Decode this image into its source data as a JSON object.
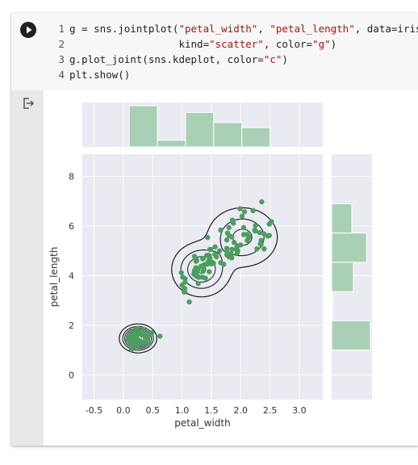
{
  "code_lines": [
    {
      "num": "1",
      "parts": [
        {
          "t": "g = sns.jointplot("
        },
        {
          "t": "\"petal_width\"",
          "s": 1
        },
        {
          "t": ", "
        },
        {
          "t": "\"petal_length\"",
          "s": 1
        },
        {
          "t": ", data=iris,"
        }
      ]
    },
    {
      "num": "2",
      "parts": [
        {
          "t": "                  kind="
        },
        {
          "t": "\"scatter\"",
          "s": 1
        },
        {
          "t": ", color="
        },
        {
          "t": "\"g\"",
          "s": 1
        },
        {
          "t": ")"
        }
      ]
    },
    {
      "num": "3",
      "parts": [
        {
          "t": "g.plot_joint(sns.kdeplot, color="
        },
        {
          "t": "\"c\"",
          "s": 1
        },
        {
          "t": ")"
        }
      ]
    },
    {
      "num": "4",
      "parts": [
        {
          "t": "plt.show()"
        }
      ]
    }
  ],
  "colors": {
    "plot_bg": "#eaeaf2",
    "scatter": "#4c9e5f",
    "hist": "#a9d0b4",
    "kde_dark": "#1a1a1a",
    "kde_light": "#6fa3b3"
  },
  "chart_data": {
    "type": "scatter",
    "xlabel": "petal_width",
    "ylabel": "petal_length",
    "xlim": [
      -0.7,
      3.4
    ],
    "ylim": [
      -1.0,
      8.9
    ],
    "xticks": [
      -0.5,
      0.0,
      0.5,
      1.0,
      1.5,
      2.0,
      2.5,
      3.0
    ],
    "xtick_labels": [
      "-0.5",
      "0.0",
      "0.5",
      "1.0",
      "1.5",
      "2.0",
      "2.5",
      "3.0"
    ],
    "yticks": [
      0,
      2,
      4,
      6,
      8
    ],
    "ytick_labels": [
      "0",
      "2",
      "4",
      "6",
      "8"
    ],
    "grid": true,
    "points": {
      "x": [
        0.2,
        0.2,
        0.2,
        0.2,
        0.2,
        0.4,
        0.3,
        0.2,
        0.2,
        0.1,
        0.2,
        0.2,
        0.1,
        0.1,
        0.2,
        0.4,
        0.4,
        0.3,
        0.3,
        0.3,
        0.2,
        0.4,
        0.2,
        0.5,
        0.2,
        0.2,
        0.4,
        0.2,
        0.2,
        0.2,
        0.2,
        0.4,
        0.1,
        0.2,
        0.2,
        0.2,
        0.2,
        0.1,
        0.2,
        0.2,
        0.3,
        0.3,
        0.2,
        0.6,
        0.4,
        0.3,
        0.2,
        0.2,
        0.2,
        0.2,
        1.4,
        1.5,
        1.5,
        1.3,
        1.5,
        1.3,
        1.6,
        1.0,
        1.3,
        1.4,
        1.0,
        1.5,
        1.0,
        1.4,
        1.3,
        1.4,
        1.5,
        1.0,
        1.5,
        1.1,
        1.8,
        1.3,
        1.5,
        1.2,
        1.3,
        1.4,
        1.4,
        1.7,
        1.5,
        1.0,
        1.1,
        1.0,
        1.2,
        1.6,
        1.5,
        1.6,
        1.5,
        1.3,
        1.3,
        1.3,
        1.2,
        1.4,
        1.2,
        1.0,
        1.3,
        1.2,
        1.3,
        1.3,
        1.1,
        1.3,
        2.5,
        1.9,
        2.1,
        1.8,
        2.2,
        2.1,
        1.7,
        1.8,
        1.8,
        2.5,
        2.0,
        1.9,
        2.1,
        2.0,
        2.4,
        2.3,
        1.8,
        2.2,
        2.3,
        1.5,
        2.3,
        2.0,
        2.0,
        1.8,
        2.1,
        1.8,
        1.8,
        1.8,
        2.1,
        1.6,
        1.9,
        2.0,
        2.2,
        1.5,
        1.4,
        2.3,
        2.4,
        1.8,
        1.8,
        2.1,
        2.4,
        2.3,
        1.9,
        2.3,
        2.5,
        2.3,
        1.9,
        2.0,
        2.3,
        1.8
      ],
      "y": [
        1.4,
        1.4,
        1.3,
        1.5,
        1.4,
        1.7,
        1.4,
        1.5,
        1.4,
        1.5,
        1.5,
        1.6,
        1.4,
        1.1,
        1.2,
        1.5,
        1.3,
        1.4,
        1.7,
        1.5,
        1.7,
        1.5,
        1.0,
        1.7,
        1.9,
        1.6,
        1.6,
        1.5,
        1.4,
        1.6,
        1.6,
        1.5,
        1.5,
        1.4,
        1.5,
        1.2,
        1.3,
        1.4,
        1.3,
        1.5,
        1.3,
        1.3,
        1.3,
        1.6,
        1.9,
        1.4,
        1.6,
        1.4,
        1.5,
        1.4,
        4.7,
        4.5,
        4.9,
        4.0,
        4.6,
        4.5,
        4.7,
        3.3,
        4.6,
        3.9,
        3.5,
        4.2,
        4.0,
        4.7,
        3.6,
        4.4,
        4.5,
        4.1,
        4.5,
        3.9,
        4.8,
        4.0,
        4.9,
        4.7,
        4.3,
        4.4,
        4.8,
        5.0,
        4.5,
        3.5,
        3.8,
        3.7,
        3.9,
        5.1,
        4.5,
        4.5,
        4.7,
        4.4,
        4.1,
        4.0,
        4.4,
        4.6,
        4.0,
        3.3,
        4.2,
        4.2,
        4.2,
        4.3,
        3.0,
        4.1,
        6.0,
        5.1,
        5.9,
        5.6,
        5.8,
        6.6,
        4.5,
        6.3,
        5.8,
        6.1,
        5.1,
        5.3,
        5.5,
        5.0,
        5.1,
        5.3,
        5.5,
        6.7,
        6.9,
        5.0,
        5.7,
        4.9,
        6.7,
        4.9,
        5.7,
        6.0,
        4.8,
        4.9,
        5.6,
        5.8,
        6.1,
        6.4,
        5.6,
        5.1,
        5.6,
        6.1,
        5.6,
        5.5,
        4.8,
        5.4,
        5.6,
        5.1,
        5.1,
        5.9,
        5.7,
        5.2,
        5.0,
        5.2,
        5.4,
        5.1
      ]
    },
    "marginal_x": {
      "type": "histogram",
      "bin_edges": [
        0.1,
        0.58,
        1.06,
        1.54,
        2.02,
        2.5
      ],
      "counts": [
        49,
        8,
        41,
        29,
        23
      ]
    },
    "marginal_y": {
      "type": "histogram",
      "bin_edges": [
        1.0,
        2.18,
        3.36,
        4.54,
        5.72,
        6.9
      ],
      "counts": [
        50,
        1,
        28,
        45,
        26
      ]
    },
    "kde": {
      "color": "c",
      "modes": [
        {
          "x": 0.25,
          "y": 1.47,
          "sx": 0.11,
          "sy": 0.2,
          "w": 0.33
        },
        {
          "x": 1.33,
          "y": 4.25,
          "sx": 0.22,
          "sy": 0.48,
          "w": 0.33
        },
        {
          "x": 2.03,
          "y": 5.55,
          "sx": 0.28,
          "sy": 0.56,
          "w": 0.33
        }
      ]
    }
  }
}
